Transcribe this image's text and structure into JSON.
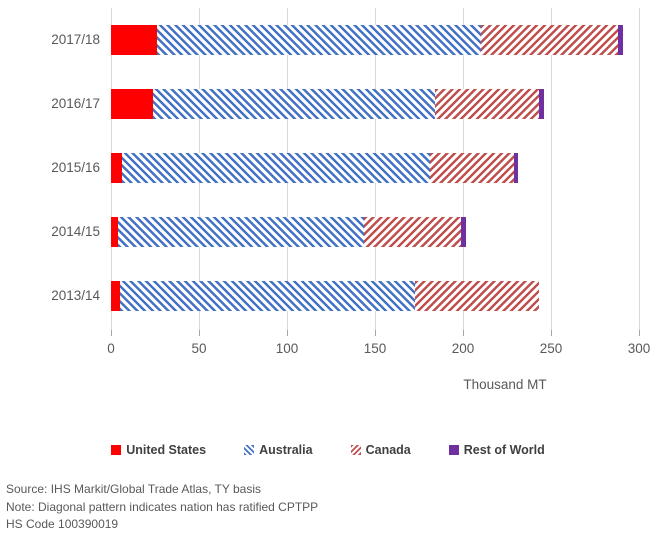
{
  "chart_data": {
    "type": "bar",
    "orientation": "horizontal",
    "stacked": true,
    "categories": [
      "2017/18",
      "2016/17",
      "2015/16",
      "2014/15",
      "2013/14"
    ],
    "series": [
      {
        "name": "United States",
        "values": [
          26,
          24,
          6,
          4,
          5
        ]
      },
      {
        "name": "Australia",
        "values": [
          184,
          160,
          175,
          140,
          168
        ]
      },
      {
        "name": "Canada",
        "values": [
          78,
          59,
          48,
          55,
          70
        ]
      },
      {
        "name": "Rest of World",
        "values": [
          3,
          3,
          2,
          3,
          0
        ]
      }
    ],
    "totals": [
      291,
      246,
      231,
      202,
      243
    ],
    "title": "",
    "xlabel": "Thousand MT",
    "ylabel": "",
    "xlim": [
      0,
      300
    ],
    "xticks": [
      0,
      50,
      100,
      150,
      200,
      250,
      300
    ],
    "grid": true,
    "legend_position": "bottom"
  },
  "legend": {
    "items": [
      {
        "label": "United States",
        "swatch": "solid-red"
      },
      {
        "label": "Australia",
        "swatch": "blue-diagonal-pattern"
      },
      {
        "label": "Canada",
        "swatch": "red-diagonal-pattern"
      },
      {
        "label": "Rest of World",
        "swatch": "solid-purple"
      }
    ]
  },
  "axis": {
    "title": "Thousand MT"
  },
  "footer": {
    "lines": [
      "Source: IHS Markit/Global Trade Atlas, TY basis",
      "Note: Diagonal pattern indicates nation has ratified CPTPP",
      "HS Code 100390019"
    ]
  },
  "colors": {
    "united_states": "#ff0000",
    "australia": "#4472c4",
    "canada": "#c0504d",
    "rest_of_world": "#7030a0",
    "gridline": "#d9d9d9",
    "axis_text": "#595959",
    "legend_text": "#404040"
  }
}
